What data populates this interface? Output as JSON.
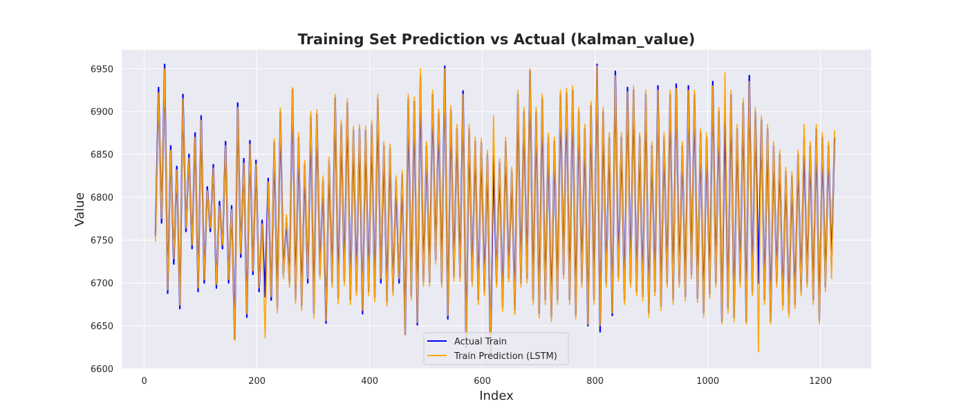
{
  "chart_data": {
    "type": "line",
    "title": "Training Set Prediction vs Actual (kalman_value)",
    "xlabel": "Index",
    "ylabel": "Value",
    "xlim": [
      -40,
      1290
    ],
    "ylim": [
      6600,
      6972
    ],
    "xticks": [
      0,
      200,
      400,
      600,
      800,
      1000,
      1200
    ],
    "yticks": [
      6600,
      6650,
      6700,
      6750,
      6800,
      6850,
      6900,
      6950
    ],
    "xtick_labels": [
      "0",
      "200",
      "400",
      "600",
      "800",
      "1000",
      "1200"
    ],
    "ytick_labels": [
      "6600",
      "6650",
      "6700",
      "6750",
      "6800",
      "6850",
      "6900",
      "6950"
    ],
    "grid": true,
    "legend_position": "bottom-center",
    "x_start": 20,
    "x_end": 1225,
    "series": [
      {
        "name": "Actual Train",
        "color": "#0000ff",
        "values": [
          6755,
          6928,
          6770,
          6955,
          6688,
          6860,
          6722,
          6836,
          6670,
          6920,
          6760,
          6850,
          6740,
          6875,
          6690,
          6895,
          6700,
          6812,
          6760,
          6838,
          6694,
          6795,
          6740,
          6865,
          6700,
          6790,
          6634,
          6910,
          6730,
          6845,
          6660,
          6866,
          6710,
          6843,
          6690,
          6773,
          6684,
          6822,
          6680,
          6864,
          6671,
          6900,
          6710,
          6775,
          6700,
          6926,
          6681,
          6870,
          6673,
          6838,
          6700,
          6895,
          6665,
          6897,
          6710,
          6820,
          6653,
          6842,
          6700,
          6916,
          6682,
          6885,
          6702,
          6910,
          6680,
          6878,
          6690,
          6880,
          6664,
          6878,
          6690,
          6885,
          6683,
          6915,
          6700,
          6860,
          6678,
          6857,
          6690,
          6820,
          6700,
          6827,
          6640,
          6915,
          6685,
          6912,
          6651,
          6940,
          6701,
          6860,
          6701,
          6920,
          6727,
          6898,
          6700,
          6953,
          6658,
          6902,
          6707,
          6880,
          6707,
          6924,
          6625,
          6880,
          6701,
          6865,
          6680,
          6864,
          6690,
          6850,
          6617,
          6850,
          6700,
          6840,
          6672,
          6865,
          6706,
          6830,
          6668,
          6920,
          6700,
          6900,
          6705,
          6948,
          6680,
          6900,
          6664,
          6915,
          6680,
          6870,
          6660,
          6865,
          6680,
          6920,
          6710,
          6922,
          6680,
          6925,
          6663,
          6900,
          6700,
          6880,
          6650,
          6907,
          6680,
          6955,
          6643,
          6900,
          6700,
          6870,
          6662,
          6947,
          6707,
          6870,
          6680,
          6928,
          6700,
          6925,
          6690,
          6870,
          6684,
          6920,
          6665,
          6860,
          6690,
          6930,
          6673,
          6870,
          6700,
          6920,
          6680,
          6932,
          6700,
          6860,
          6684,
          6930,
          6710,
          6920,
          6682,
          6875,
          6665,
          6870,
          6687,
          6935,
          6700,
          6900,
          6655,
          6910,
          6670,
          6920,
          6660,
          6880,
          6700,
          6910,
          6655,
          6942,
          6690,
          6900,
          6700,
          6890,
          6680,
          6880,
          6655,
          6860,
          6700,
          6850,
          6674,
          6830,
          6665,
          6825,
          6675,
          6850,
          6690,
          6870,
          6700,
          6860,
          6680,
          6880,
          6656,
          6870,
          6695,
          6860,
          6720,
          6870
        ]
      },
      {
        "name": "Train Prediction (LSTM)",
        "color": "#ffa500",
        "values": [
          6748,
          6922,
          6775,
          6950,
          6692,
          6855,
          6728,
          6832,
          6674,
          6915,
          6764,
          6846,
          6744,
          6870,
          6694,
          6890,
          6704,
          6808,
          6764,
          6834,
          6698,
          6790,
          6744,
          6860,
          6704,
          6786,
          6633,
          6905,
          6734,
          6840,
          6664,
          6862,
          6714,
          6839,
          6694,
          6769,
          6636,
          6818,
          6684,
          6868,
          6665,
          6904,
          6705,
          6780,
          6695,
          6928,
          6676,
          6875,
          6668,
          6843,
          6705,
          6900,
          6659,
          6902,
          6705,
          6825,
          6656,
          6847,
          6695,
          6920,
          6676,
          6890,
          6697,
          6915,
          6675,
          6883,
          6685,
          6885,
          6668,
          6883,
          6685,
          6890,
          6678,
          6920,
          6705,
          6865,
          6673,
          6862,
          6685,
          6825,
          6705,
          6831,
          6640,
          6920,
          6680,
          6917,
          6654,
          6950,
          6696,
          6865,
          6696,
          6925,
          6722,
          6903,
          6695,
          6950,
          6662,
          6907,
          6702,
          6885,
          6702,
          6920,
          6627,
          6885,
          6696,
          6870,
          6675,
          6869,
          6685,
          6855,
          6620,
          6895,
          6695,
          6845,
          6667,
          6870,
          6701,
          6835,
          6663,
          6925,
          6695,
          6905,
          6700,
          6950,
          6675,
          6905,
          6659,
          6920,
          6675,
          6875,
          6655,
          6870,
          6675,
          6925,
          6705,
          6927,
          6675,
          6930,
          6658,
          6905,
          6695,
          6885,
          6652,
          6912,
          6675,
          6953,
          6650,
          6905,
          6695,
          6875,
          6665,
          6942,
          6702,
          6875,
          6675,
          6923,
          6695,
          6930,
          6685,
          6875,
          6679,
          6925,
          6660,
          6865,
          6685,
          6925,
          6668,
          6875,
          6695,
          6925,
          6675,
          6927,
          6695,
          6865,
          6679,
          6925,
          6705,
          6925,
          6677,
          6880,
          6660,
          6875,
          6682,
          6930,
          6695,
          6905,
          6652,
          6945,
          6665,
          6925,
          6655,
          6885,
          6695,
          6915,
          6652,
          6935,
          6685,
          6905,
          6620,
          6895,
          6675,
          6885,
          6652,
          6865,
          6695,
          6855,
          6669,
          6835,
          6660,
          6830,
          6670,
          6855,
          6685,
          6885,
          6695,
          6865,
          6675,
          6885,
          6652,
          6875,
          6690,
          6865,
          6705,
          6878
        ]
      }
    ]
  }
}
